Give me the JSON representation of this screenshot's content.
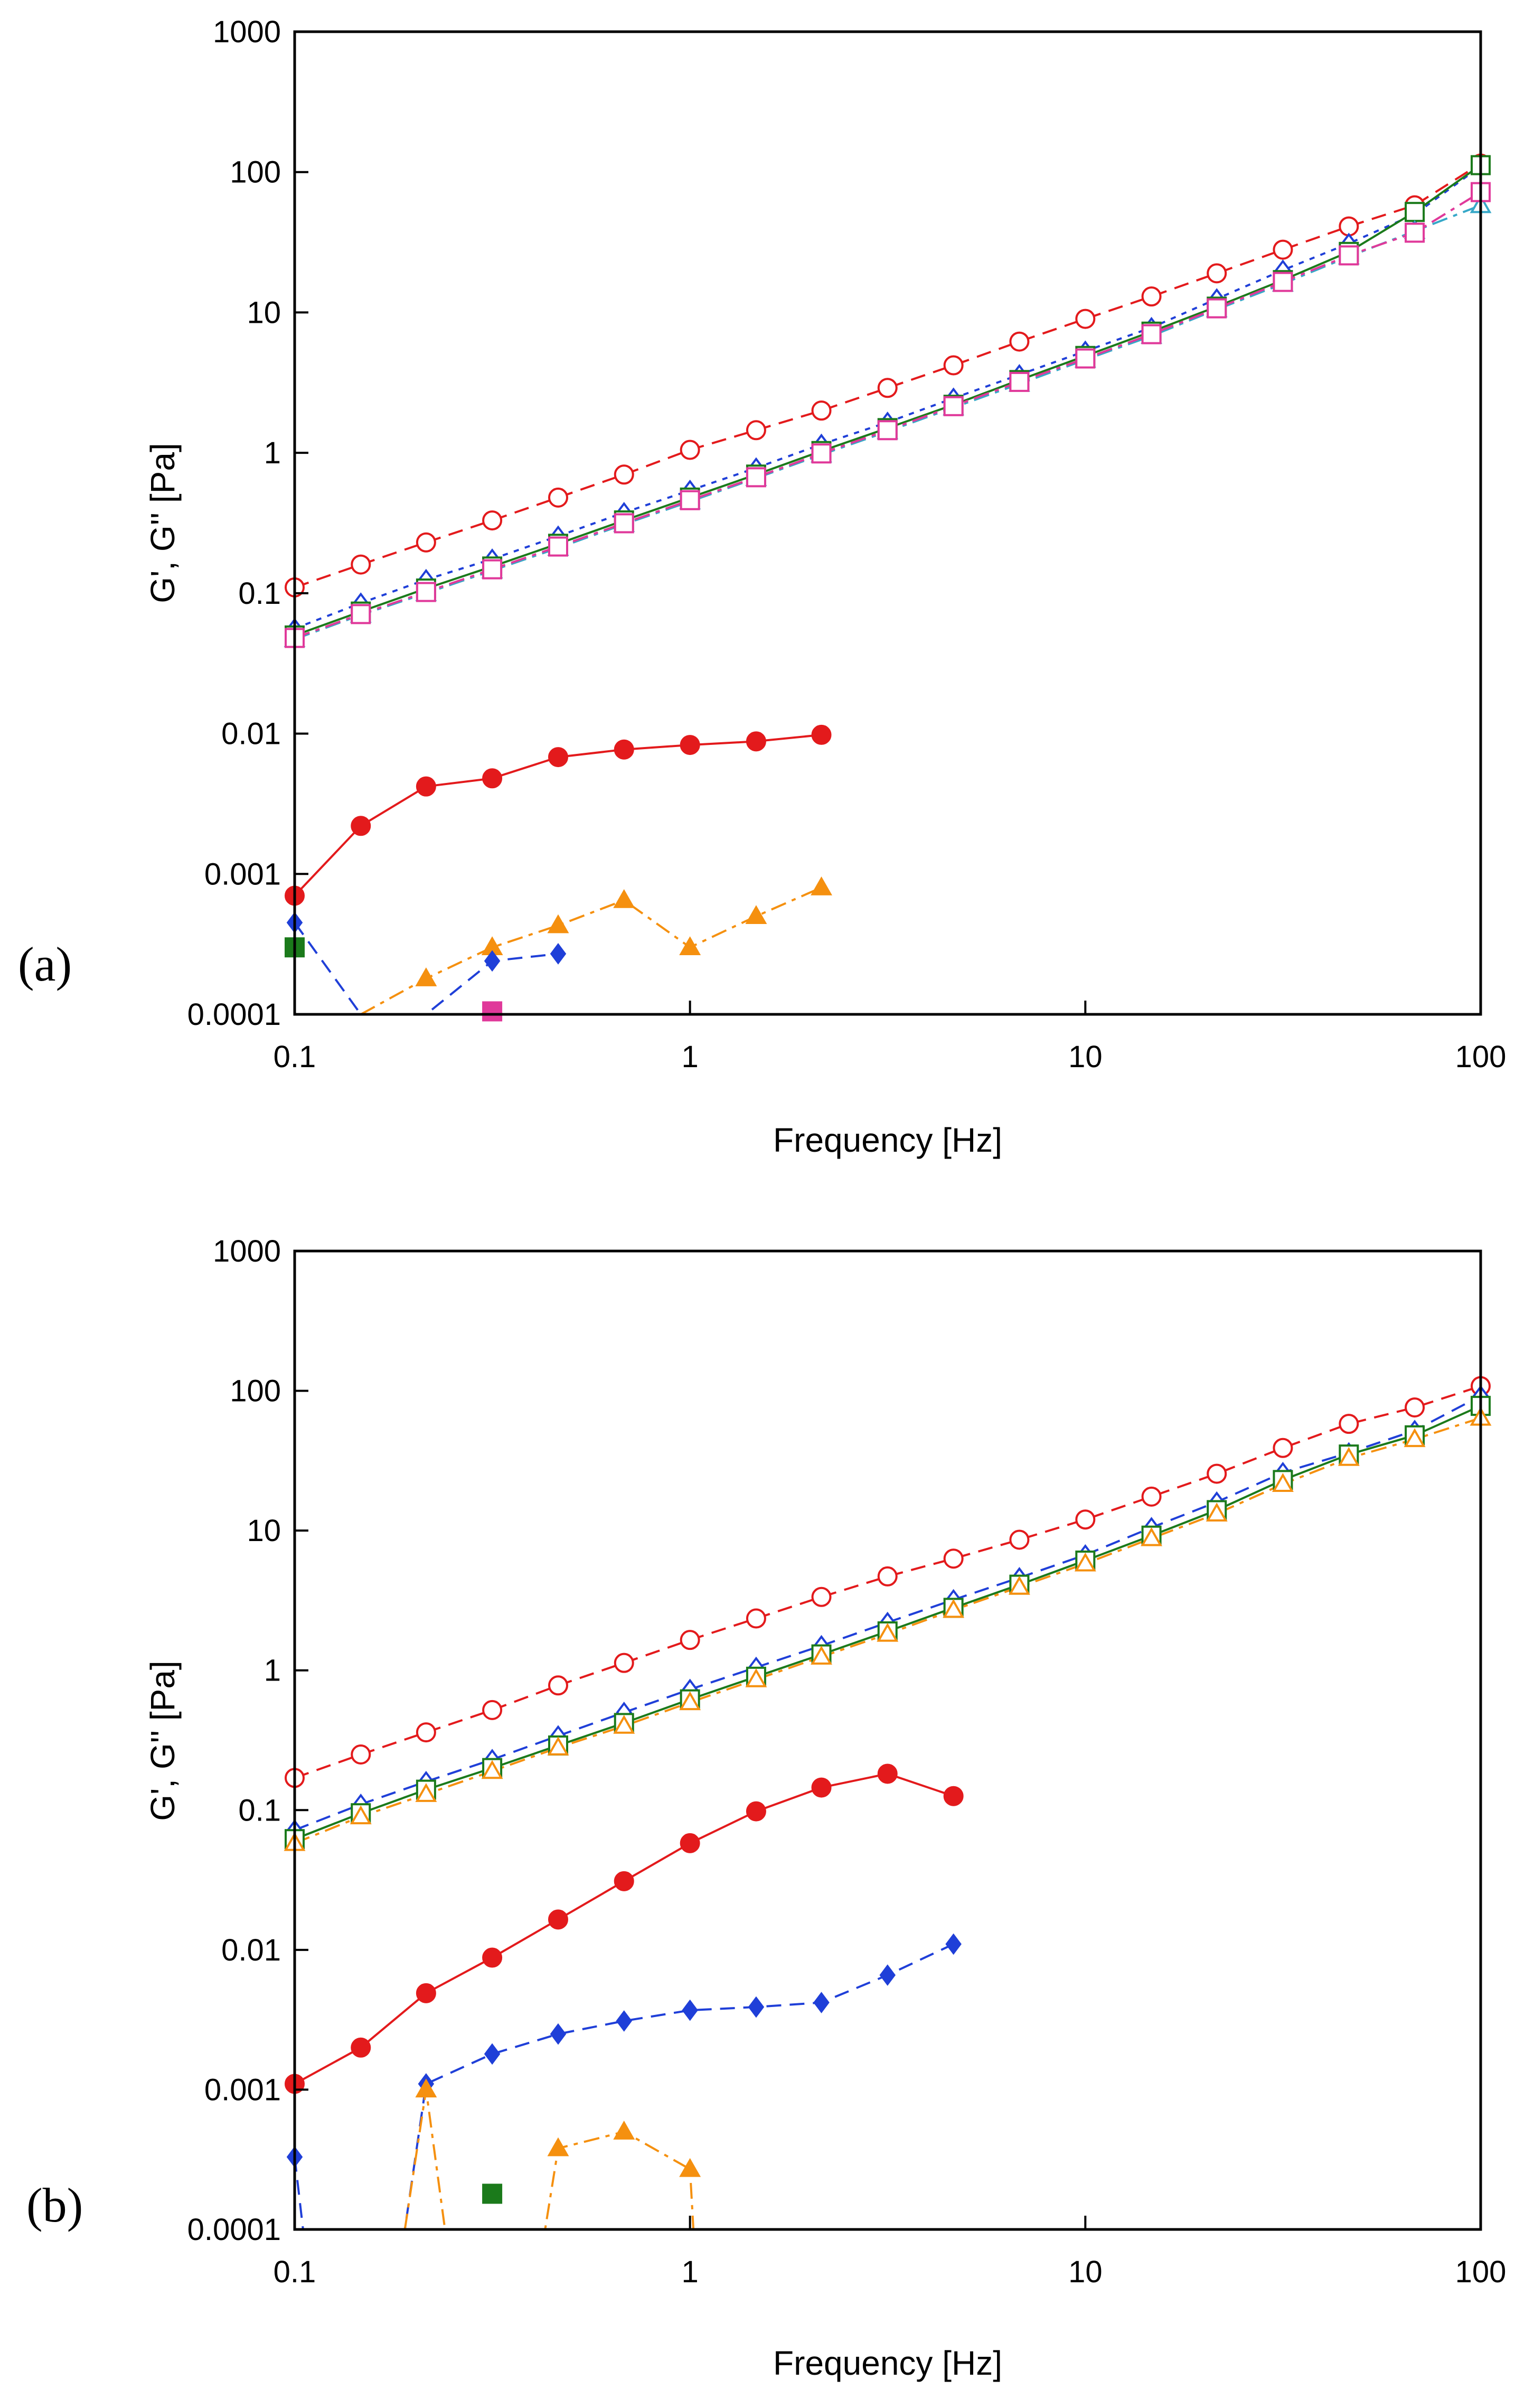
{
  "figure": {
    "panels": [
      {
        "label": "(a)"
      },
      {
        "label": "(b)"
      }
    ]
  },
  "chart_data": [
    {
      "type": "line",
      "panel": "(a)",
      "title": "",
      "xlabel": "Frequency [Hz]",
      "ylabel": "G', G'' [Pa]",
      "xscale": "log",
      "yscale": "log",
      "xlim": [
        0.1,
        100
      ],
      "ylim": [
        0.0001,
        1000
      ],
      "x_ticks": [
        "0.1",
        "1",
        "10",
        "100"
      ],
      "y_ticks": [
        "0.0001",
        "0.001",
        "0.01",
        "0.1",
        "1",
        "10",
        "100",
        "1000"
      ],
      "grid": false,
      "series": [
        {
          "name": "G'' red open circle",
          "color": "#e31a1c",
          "marker": "circle-open",
          "dash": "dashed",
          "x": [
            0.1,
            0.147,
            0.215,
            0.316,
            0.464,
            0.681,
            1.0,
            1.47,
            2.15,
            3.16,
            4.64,
            6.81,
            10,
            14.7,
            21.5,
            31.6,
            46.4,
            68.1,
            100
          ],
          "y": [
            0.11,
            0.16,
            0.23,
            0.33,
            0.48,
            0.7,
            1.05,
            1.45,
            2.0,
            2.9,
            4.2,
            6.2,
            9.0,
            13,
            19,
            28,
            41,
            58,
            115
          ]
        },
        {
          "name": "G'' blue open diamond",
          "color": "#1f3fd8",
          "marker": "diamond-open",
          "dash": "dotted",
          "x": [
            0.1,
            0.147,
            0.215,
            0.316,
            0.464,
            0.681,
            1.0,
            1.47,
            2.15,
            3.16,
            4.64,
            6.81,
            10,
            14.7,
            21.5,
            31.6,
            46.4,
            68.1,
            100
          ],
          "y": [
            0.056,
            0.085,
            0.125,
            0.175,
            0.255,
            0.375,
            0.54,
            0.78,
            1.15,
            1.65,
            2.45,
            3.6,
            5.3,
            7.8,
            12.5,
            20,
            31,
            50,
            110
          ]
        },
        {
          "name": "G'' green open square",
          "color": "#1b7a1b",
          "marker": "square-open",
          "dash": "solid",
          "x": [
            0.1,
            0.147,
            0.215,
            0.316,
            0.464,
            0.681,
            1.0,
            1.47,
            2.15,
            3.16,
            4.64,
            6.81,
            10,
            14.7,
            21.5,
            31.6,
            46.4,
            68.1,
            100
          ],
          "y": [
            0.05,
            0.074,
            0.108,
            0.155,
            0.225,
            0.33,
            0.48,
            0.7,
            1.03,
            1.5,
            2.2,
            3.3,
            4.9,
            7.3,
            11,
            17,
            27,
            52,
            112
          ]
        },
        {
          "name": "G'' teal open triangle",
          "color": "#36a8c8",
          "marker": "triangle-open",
          "dash": "dashdot",
          "x": [
            0.1,
            0.147,
            0.215,
            0.316,
            0.464,
            0.681,
            1.0,
            1.47,
            2.15,
            3.16,
            4.64,
            6.81,
            10,
            14.7,
            21.5,
            31.6,
            46.4,
            68.1,
            100
          ],
          "y": [
            0.047,
            0.07,
            0.1,
            0.145,
            0.21,
            0.31,
            0.45,
            0.66,
            0.97,
            1.42,
            2.1,
            3.1,
            4.6,
            6.8,
            10.5,
            16,
            25,
            38,
            58
          ]
        },
        {
          "name": "G'' magenta open square",
          "color": "#e0399a",
          "marker": "square-open",
          "dash": "dashdot",
          "x": [
            0.1,
            0.147,
            0.215,
            0.316,
            0.464,
            0.681,
            1.0,
            1.47,
            2.15,
            3.16,
            4.64,
            6.81,
            10,
            14.7,
            21.5,
            31.6,
            46.4,
            68.1,
            100
          ],
          "y": [
            0.048,
            0.071,
            0.102,
            0.148,
            0.215,
            0.315,
            0.46,
            0.67,
            0.99,
            1.45,
            2.15,
            3.2,
            4.7,
            7.0,
            10.7,
            16.5,
            25.5,
            37,
            72
          ]
        },
        {
          "name": "G' red filled circle",
          "color": "#e31a1c",
          "marker": "circle-filled",
          "dash": "solid",
          "x": [
            0.1,
            0.147,
            0.215,
            0.316,
            0.464,
            0.681,
            1.0,
            1.47,
            2.15
          ],
          "y": [
            0.0007,
            0.0022,
            0.0042,
            0.0048,
            0.0068,
            0.0077,
            0.0083,
            0.0088,
            0.0098
          ]
        },
        {
          "name": "G' orange filled triangle",
          "color": "#f5900f",
          "marker": "triangle-filled",
          "dash": "dashdot",
          "x": [
            0.147,
            0.215,
            0.316,
            0.464,
            0.681,
            1.0,
            1.47,
            2.15
          ],
          "y": [
            0.0001,
            0.00018,
            0.0003,
            0.00043,
            0.00065,
            0.0003,
            0.0005,
            0.0008
          ]
        },
        {
          "name": "G' blue filled diamond",
          "color": "#1f3fd8",
          "marker": "diamond-filled",
          "dash": "dashed",
          "x": [
            0.1,
            0.147,
            0.215,
            0.316,
            0.464
          ],
          "y": [
            0.00045,
            0.0001,
            0.0001,
            0.00024,
            0.00027
          ]
        },
        {
          "name": "G' green filled square",
          "color": "#1b7a1b",
          "marker": "square-filled",
          "dash": "dotted",
          "x": [
            0.1
          ],
          "y": [
            0.0003
          ]
        },
        {
          "name": "G' magenta filled square",
          "color": "#e0399a",
          "marker": "square-filled",
          "dash": "solid",
          "x": [
            0.316
          ],
          "y": [
            0.000105
          ]
        }
      ]
    },
    {
      "type": "line",
      "panel": "(b)",
      "title": "",
      "xlabel": "Frequency [Hz]",
      "ylabel": "G', G'' [Pa]",
      "xscale": "log",
      "yscale": "log",
      "xlim": [
        0.1,
        100
      ],
      "ylim": [
        0.0001,
        1000
      ],
      "x_ticks": [
        "0.1",
        "1",
        "10",
        "100"
      ],
      "y_ticks": [
        "0.0001",
        "0.001",
        "0.01",
        "0.1",
        "1",
        "10",
        "100",
        "1000"
      ],
      "grid": false,
      "series": [
        {
          "name": "G'' red open circle",
          "color": "#e31a1c",
          "marker": "circle-open",
          "dash": "dashed",
          "x": [
            0.1,
            0.147,
            0.215,
            0.316,
            0.464,
            0.681,
            1.0,
            1.47,
            2.15,
            3.16,
            4.64,
            6.81,
            10,
            14.7,
            21.5,
            31.6,
            46.4,
            68.1,
            100
          ],
          "y": [
            0.17,
            0.25,
            0.36,
            0.52,
            0.78,
            1.13,
            1.65,
            2.35,
            3.35,
            4.7,
            6.3,
            8.6,
            12,
            17.5,
            25.5,
            39,
            58,
            76,
            108
          ]
        },
        {
          "name": "G'' blue open diamond",
          "color": "#1f3fd8",
          "marker": "diamond-open",
          "dash": "dashed",
          "x": [
            0.1,
            0.147,
            0.215,
            0.316,
            0.464,
            0.681,
            1.0,
            1.47,
            2.15,
            3.16,
            4.64,
            6.81,
            10,
            14.7,
            21.5,
            31.6,
            46.4,
            68.1,
            100
          ],
          "y": [
            0.072,
            0.11,
            0.16,
            0.23,
            0.34,
            0.5,
            0.73,
            1.05,
            1.5,
            2.2,
            3.2,
            4.6,
            6.7,
            10.5,
            16,
            26,
            36,
            52,
            92
          ]
        },
        {
          "name": "G'' green open square",
          "color": "#1b7a1b",
          "marker": "square-open",
          "dash": "solid",
          "x": [
            0.1,
            0.147,
            0.215,
            0.316,
            0.464,
            0.681,
            1.0,
            1.47,
            2.15,
            3.16,
            4.64,
            6.81,
            10,
            14.7,
            21.5,
            31.6,
            46.4,
            68.1,
            100
          ],
          "y": [
            0.062,
            0.095,
            0.14,
            0.2,
            0.29,
            0.42,
            0.62,
            0.9,
            1.3,
            1.9,
            2.8,
            4.1,
            6.1,
            9.2,
            14,
            23,
            35,
            48,
            78
          ]
        },
        {
          "name": "G'' orange open triangle",
          "color": "#f5900f",
          "marker": "triangle-open",
          "dash": "dashdot",
          "x": [
            0.1,
            0.147,
            0.215,
            0.316,
            0.464,
            0.681,
            1.0,
            1.47,
            2.15,
            3.16,
            4.64,
            6.81,
            10,
            14.7,
            21.5,
            31.6,
            46.4,
            68.1,
            100
          ],
          "y": [
            0.058,
            0.09,
            0.13,
            0.19,
            0.28,
            0.4,
            0.59,
            0.86,
            1.25,
            1.82,
            2.7,
            3.95,
            5.8,
            8.8,
            13.2,
            21.5,
            33,
            45,
            64
          ]
        },
        {
          "name": "G' red filled circle",
          "color": "#e31a1c",
          "marker": "circle-filled",
          "dash": "solid",
          "x": [
            0.1,
            0.147,
            0.215,
            0.316,
            0.464,
            0.681,
            1.0,
            1.47,
            2.15,
            3.16,
            4.64
          ],
          "y": [
            0.0011,
            0.002,
            0.0049,
            0.0088,
            0.0165,
            0.031,
            0.058,
            0.098,
            0.145,
            0.182,
            0.126
          ]
        },
        {
          "name": "G' blue filled diamond",
          "color": "#1f3fd8",
          "marker": "diamond-filled",
          "dash": "dashed",
          "x": [
            0.1,
            0.105,
            0.19,
            0.215,
            0.316,
            0.464,
            0.681,
            1.0,
            1.47,
            2.15,
            3.16,
            4.64
          ],
          "y": [
            0.00033,
            0.0001,
            0.0001,
            0.0011,
            0.0018,
            0.0025,
            0.0031,
            0.0037,
            0.0039,
            0.0042,
            0.0066,
            0.011
          ]
        },
        {
          "name": "G' orange filled triangle",
          "color": "#f5900f",
          "marker": "triangle-filled",
          "dash": "dashdot",
          "x": [
            0.19,
            0.215,
            0.24,
            0.43,
            0.464,
            0.681,
            1.0,
            1.02
          ],
          "y": [
            0.0001,
            0.001,
            0.0001,
            0.0001,
            0.00038,
            0.0005,
            0.00027,
            0.0001
          ]
        },
        {
          "name": "G' green filled square",
          "color": "#1b7a1b",
          "marker": "square-filled",
          "dash": "dotted",
          "x": [
            0.316
          ],
          "y": [
            0.00018
          ]
        }
      ]
    }
  ]
}
